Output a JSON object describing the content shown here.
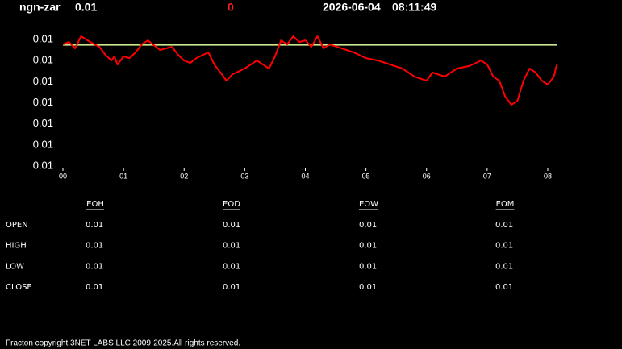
{
  "header": {
    "symbol": "ngn-zar",
    "price": "0.01",
    "change": "0",
    "date": "2026-06-04",
    "time": "08:11:49"
  },
  "chart_data": {
    "type": "line",
    "series": [
      {
        "color": "#ff0000",
        "x": [
          0,
          0.1,
          0.2,
          0.3,
          0.45,
          0.6,
          0.7,
          0.8,
          0.85,
          0.9,
          1.0,
          1.1,
          1.2,
          1.3,
          1.4,
          1.5,
          1.6,
          1.8,
          1.9,
          2.0,
          2.1,
          2.2,
          2.4,
          2.5,
          2.6,
          2.7,
          2.8,
          3.0,
          3.1,
          3.2,
          3.4,
          3.5,
          3.6,
          3.7,
          3.8,
          3.9,
          4.0,
          4.1,
          4.2,
          4.3,
          4.4,
          4.6,
          4.8,
          5.0,
          5.2,
          5.4,
          5.6,
          5.7,
          5.8,
          6.0,
          6.1,
          6.3,
          6.5,
          6.7,
          6.9,
          7.0,
          7.1,
          7.2,
          7.3,
          7.4,
          7.5,
          7.6,
          7.7,
          7.8,
          7.9,
          8.0,
          8.1,
          8.15
        ],
        "values": [
          0.011954,
          0.011977,
          0.011916,
          0.012031,
          0.011977,
          0.011931,
          0.011855,
          0.011801,
          0.01184,
          0.011763,
          0.01184,
          0.011824,
          0.011878,
          0.011954,
          0.011992,
          0.011947,
          0.011901,
          0.011931,
          0.011855,
          0.011801,
          0.011778,
          0.011824,
          0.011878,
          0.011763,
          0.011687,
          0.01161,
          0.011671,
          0.011725,
          0.011763,
          0.011801,
          0.011725,
          0.01184,
          0.011992,
          0.011954,
          0.012031,
          0.011977,
          0.011992,
          0.011931,
          0.012031,
          0.011916,
          0.011954,
          0.011916,
          0.011878,
          0.011824,
          0.011801,
          0.011763,
          0.011725,
          0.011687,
          0.011648,
          0.01161,
          0.011687,
          0.011648,
          0.011725,
          0.011748,
          0.011801,
          0.011763,
          0.011648,
          0.01161,
          0.011457,
          0.011381,
          0.011419,
          0.01161,
          0.011725,
          0.011687,
          0.01161,
          0.011572,
          0.011648,
          0.011763
        ]
      },
      {
        "color": "#c8e68c",
        "x": [
          0,
          8.15
        ],
        "values": [
          0.01195,
          0.01195
        ]
      }
    ],
    "xlim": [
      0,
      8.2
    ],
    "xticks": [
      {
        "value": 0,
        "label": "00"
      },
      {
        "value": 1,
        "label": "01"
      },
      {
        "value": 2,
        "label": "02"
      },
      {
        "value": 3,
        "label": "03"
      },
      {
        "value": 4,
        "label": "04"
      },
      {
        "value": 5,
        "label": "05"
      },
      {
        "value": 6,
        "label": "06"
      },
      {
        "value": 7,
        "label": "07"
      },
      {
        "value": 8,
        "label": "08"
      }
    ],
    "ylim": [
      0.0108,
      0.0121
    ],
    "yticks": [
      {
        "value": 0.012,
        "label": "0.01"
      },
      {
        "value": 0.0118,
        "label": "0.01"
      },
      {
        "value": 0.0116,
        "label": "0.01"
      },
      {
        "value": 0.0114,
        "label": "0.01"
      },
      {
        "value": 0.0112,
        "label": "0.01"
      },
      {
        "value": 0.011,
        "label": "0.01"
      },
      {
        "value": 0.0108,
        "label": "0.01"
      }
    ]
  },
  "table": {
    "columns": [
      "EOH",
      "EOD",
      "EOW",
      "EOM"
    ],
    "rows": [
      [
        "OPEN",
        "0.01",
        "0.01",
        "0.01",
        "0.01"
      ],
      [
        "HIGH",
        "0.01",
        "0.01",
        "0.01",
        "0.01"
      ],
      [
        "LOW",
        "0.01",
        "0.01",
        "0.01",
        "0.01"
      ],
      [
        "CLOSE",
        "0.01",
        "0.01",
        "0.01",
        "0.01"
      ]
    ]
  },
  "footer": "Fracton copyright 3NET LABS LLC 2009-2025.All rights reserved."
}
